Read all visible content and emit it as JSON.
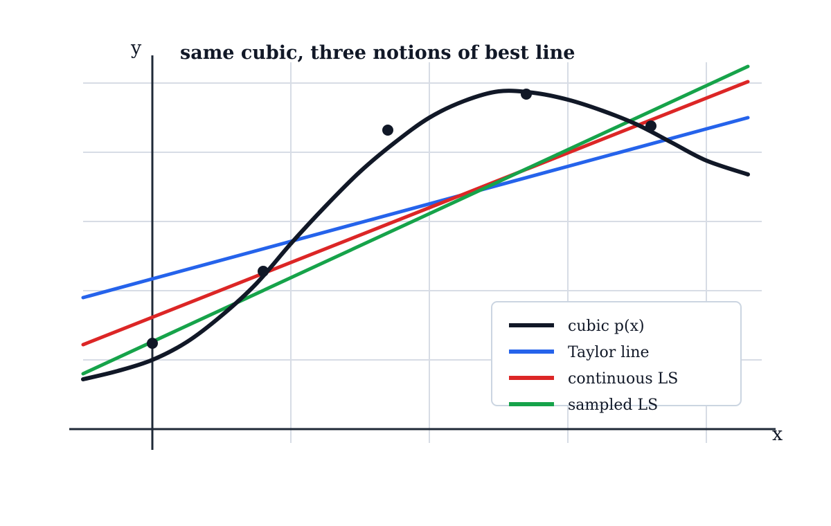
{
  "chart_data": {
    "type": "line",
    "title": "same cubic, three notions of best line",
    "xlabel": "x",
    "ylabel": "y",
    "xlim": [
      -0.5,
      4.5
    ],
    "ylim": [
      0,
      2.5
    ],
    "grid": true,
    "tick_labels_shown": false,
    "legend_position": "bottom-right",
    "x_gridlines": [
      1,
      2,
      3,
      4
    ],
    "y_gridlines": [
      0.5,
      1.0,
      1.5,
      2.0,
      2.5
    ],
    "series": [
      {
        "name": "cubic p(x)",
        "kind": "curve",
        "color": "#111827",
        "x": [
          -0.5,
          -0.25,
          0,
          0.25,
          0.5,
          0.75,
          1.0,
          1.25,
          1.5,
          1.75,
          2.0,
          2.25,
          2.5,
          2.75,
          3.0,
          3.25,
          3.5,
          3.75,
          4.0,
          4.3
        ],
        "y": [
          0.36,
          0.42,
          0.5,
          0.63,
          0.82,
          1.05,
          1.34,
          1.61,
          1.86,
          2.07,
          2.25,
          2.37,
          2.44,
          2.43,
          2.38,
          2.3,
          2.2,
          2.07,
          1.94,
          1.84
        ]
      },
      {
        "name": "Taylor line",
        "kind": "line",
        "color": "#2563eb",
        "x": [
          -0.5,
          4.3
        ],
        "y": [
          0.95,
          2.25
        ]
      },
      {
        "name": "continuous LS",
        "kind": "line",
        "color": "#dc2626",
        "x": [
          -0.5,
          4.3
        ],
        "y": [
          0.61,
          2.51
        ]
      },
      {
        "name": "sampled LS",
        "kind": "line",
        "color": "#16a34a",
        "x": [
          -0.5,
          4.3
        ],
        "y": [
          0.4,
          2.62
        ]
      }
    ],
    "points": {
      "color": "#111827",
      "x": [
        0,
        0.8,
        1.7,
        2.7,
        3.6
      ],
      "y": [
        0.62,
        1.14,
        2.16,
        2.42,
        2.19
      ]
    }
  }
}
